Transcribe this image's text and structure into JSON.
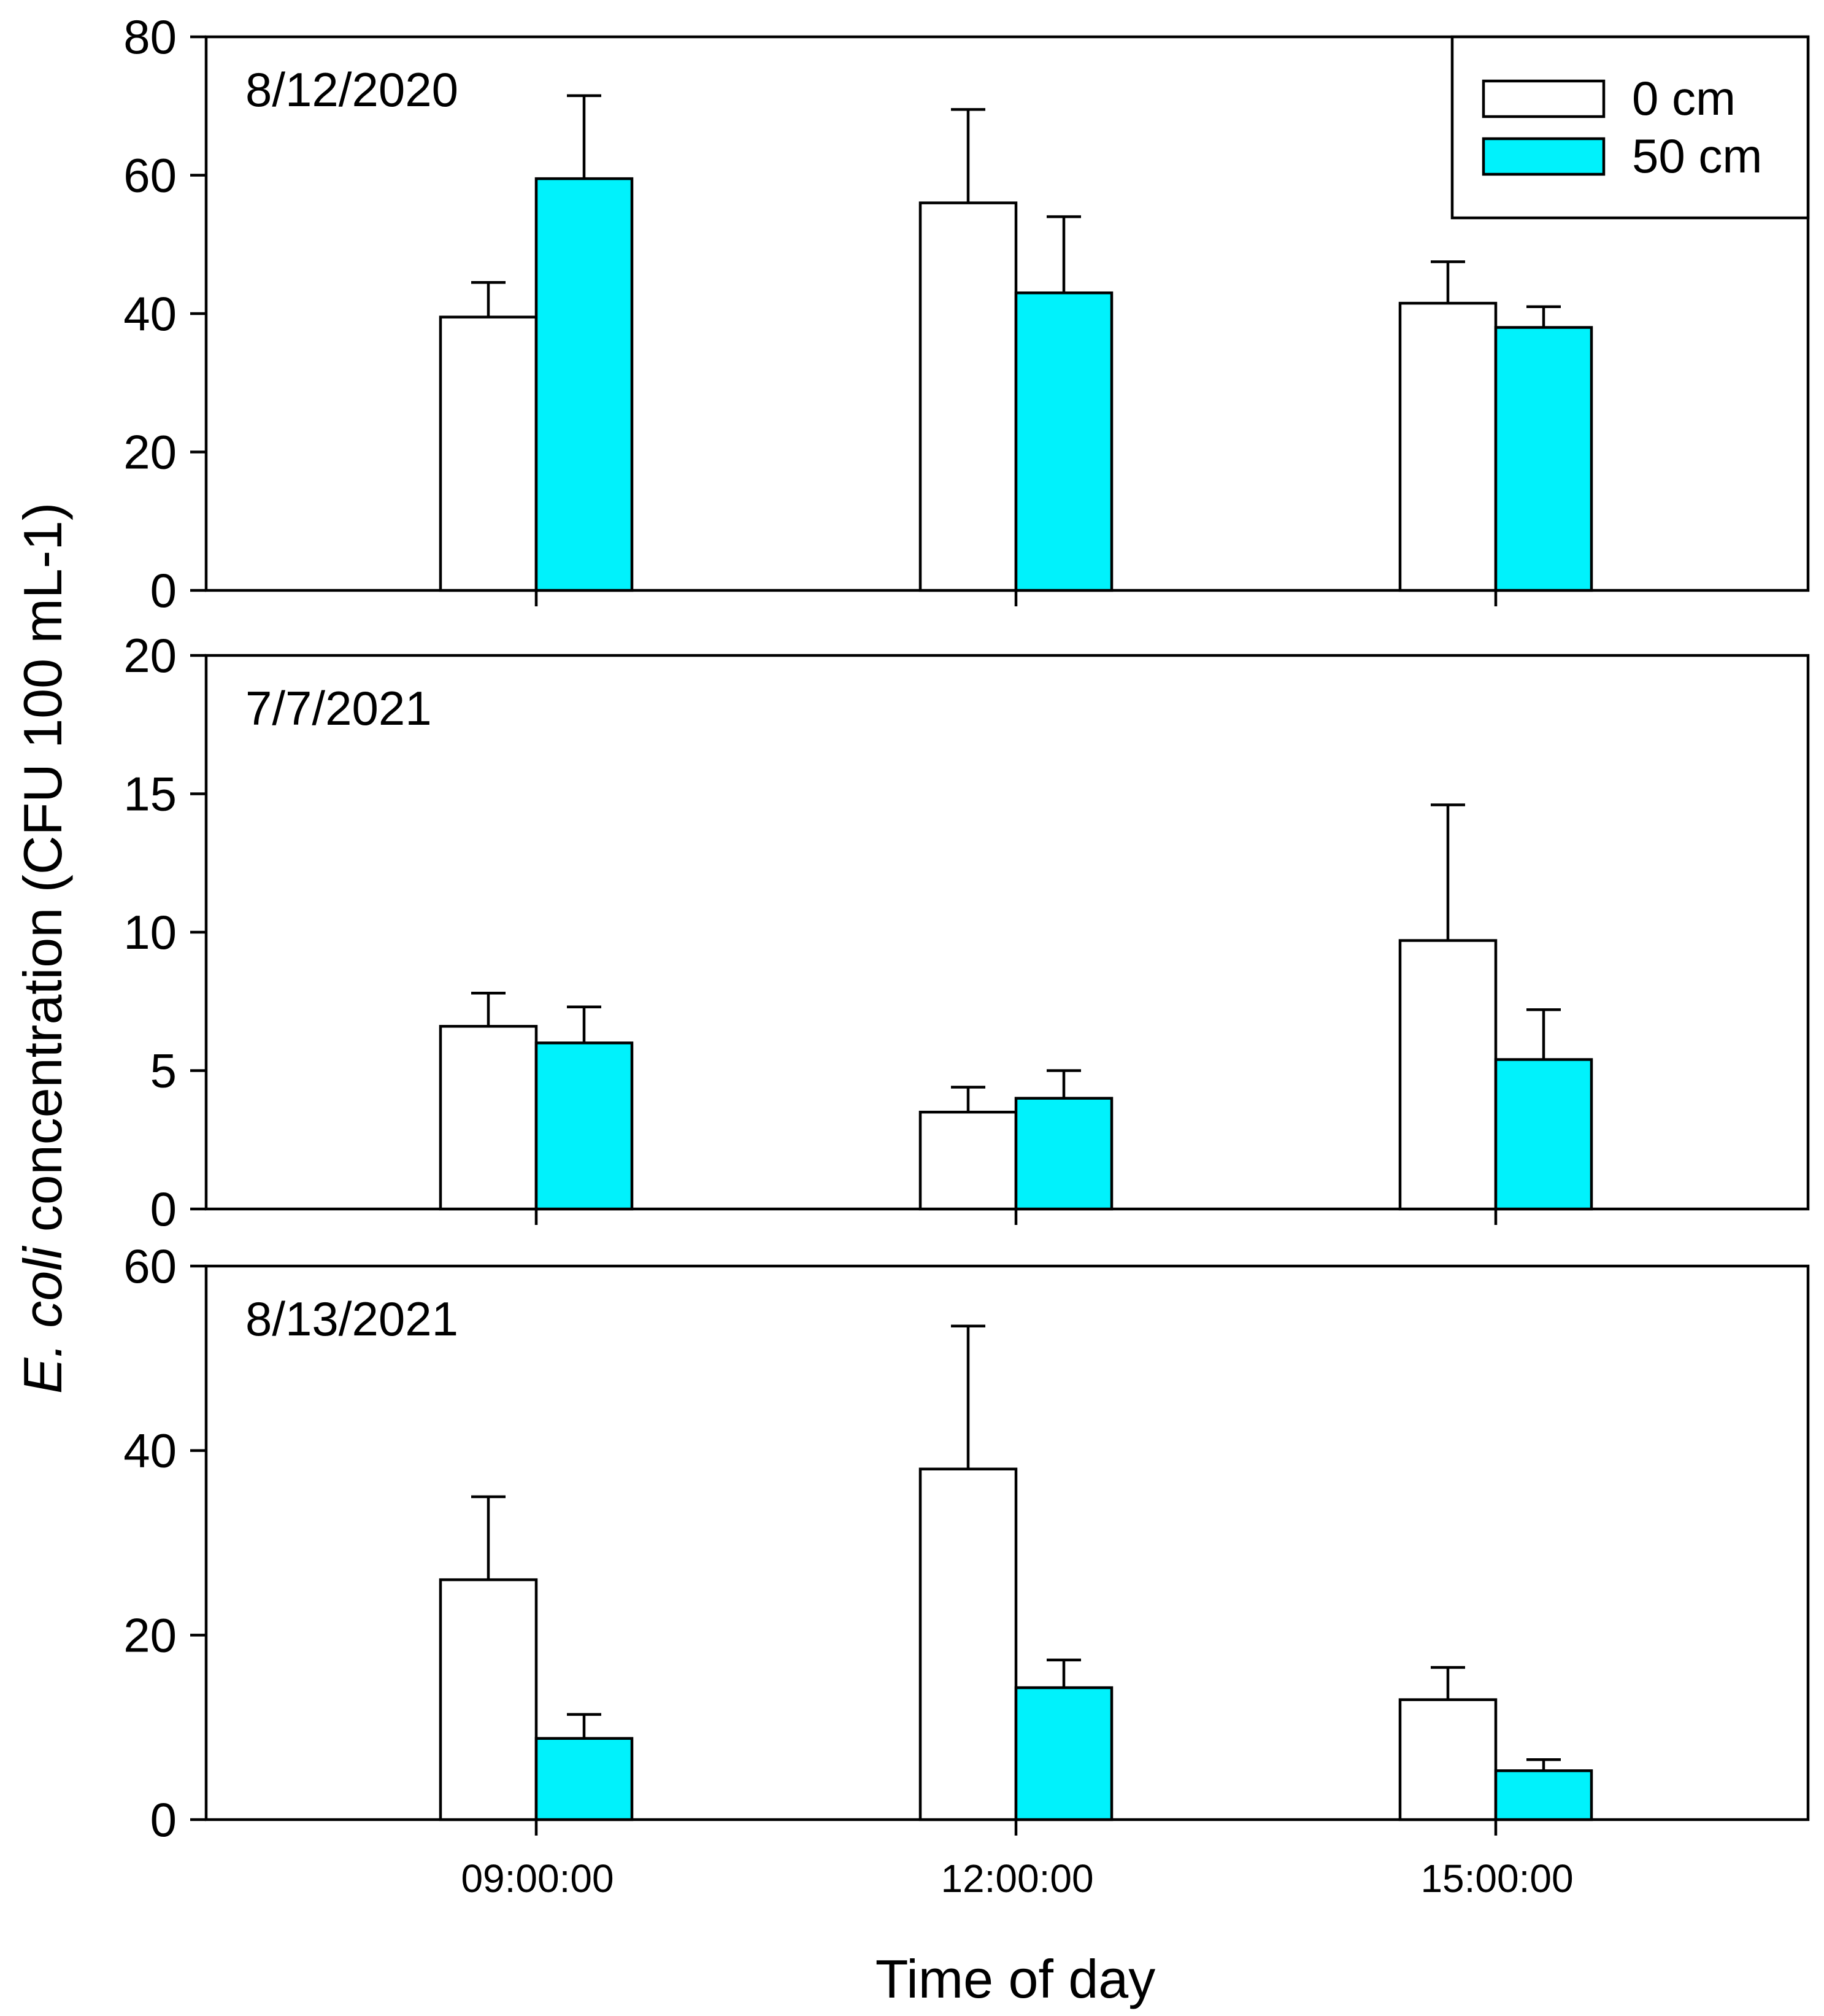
{
  "colors": {
    "series_0cm": "#ffffff",
    "series_50cm": "#00f2fc",
    "stroke": "#000000"
  },
  "axes": {
    "ylabel_italic": "E. coli",
    "ylabel_rest": " concentration (CFU 100 mL-1)",
    "xlabel": "Time of day"
  },
  "legend": {
    "items": [
      "0 cm",
      "50 cm"
    ],
    "placement": "top-right (top panel)"
  },
  "chart_data": [
    {
      "type": "bar",
      "panel_label": "8/12/2020",
      "categories": [
        "09:00:00",
        "12:00:00",
        "15:00:00"
      ],
      "ylim": [
        0,
        80
      ],
      "yticks": [
        0,
        20,
        40,
        60,
        80
      ],
      "series": [
        {
          "name": "0 cm",
          "values": [
            39.5,
            56,
            41.5
          ],
          "error": [
            5,
            13.5,
            6
          ]
        },
        {
          "name": "50 cm",
          "values": [
            59.5,
            43,
            38
          ],
          "error": [
            12,
            11,
            3
          ]
        }
      ],
      "show_x_tick_labels": false
    },
    {
      "type": "bar",
      "panel_label": "7/7/2021",
      "categories": [
        "09:00:00",
        "12:00:00",
        "15:00:00"
      ],
      "ylim": [
        0,
        20
      ],
      "yticks": [
        0,
        5,
        10,
        15,
        20
      ],
      "series": [
        {
          "name": "0 cm",
          "values": [
            6.6,
            3.5,
            9.7
          ],
          "error": [
            1.2,
            0.9,
            4.9
          ]
        },
        {
          "name": "50 cm",
          "values": [
            6.0,
            4.0,
            5.4
          ],
          "error": [
            1.3,
            1.0,
            1.8
          ]
        }
      ],
      "show_x_tick_labels": false
    },
    {
      "type": "bar",
      "panel_label": "8/13/2021",
      "categories": [
        "09:00:00",
        "12:00:00",
        "15:00:00"
      ],
      "ylim": [
        0,
        60
      ],
      "yticks": [
        0,
        20,
        40,
        60
      ],
      "series": [
        {
          "name": "0 cm",
          "values": [
            26,
            38,
            13
          ],
          "error": [
            9,
            15.5,
            3.5
          ]
        },
        {
          "name": "50 cm",
          "values": [
            8.8,
            14.3,
            5.3
          ],
          "error": [
            2.6,
            3,
            1.2
          ]
        }
      ],
      "show_x_tick_labels": true
    }
  ]
}
